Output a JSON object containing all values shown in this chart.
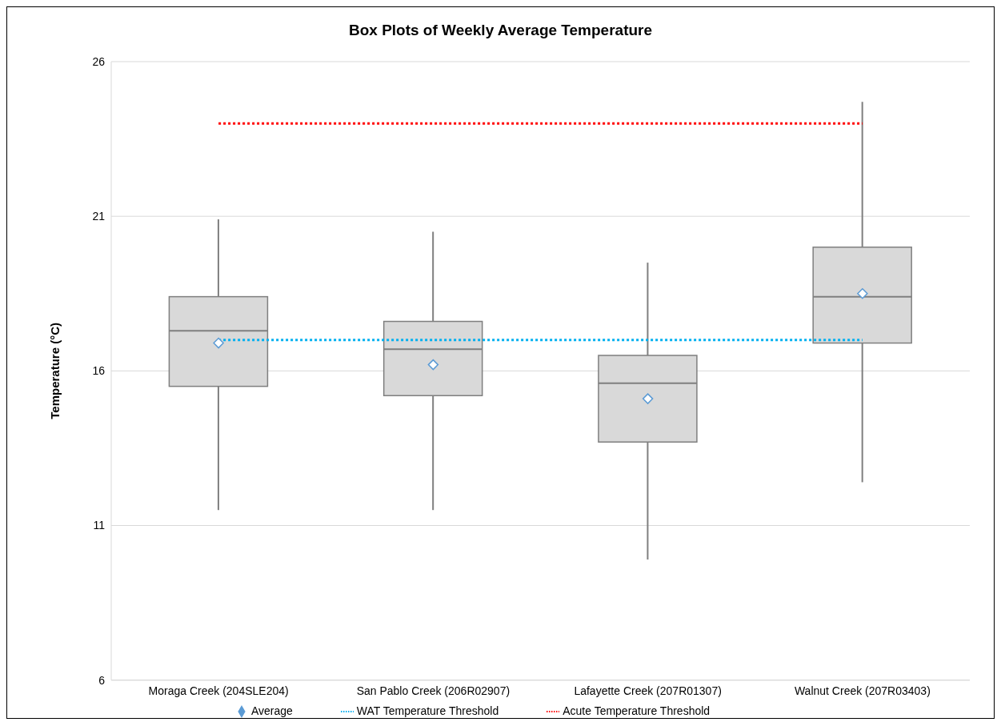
{
  "chart_data": {
    "type": "box",
    "title": "Box Plots of Weekly Average Temperature",
    "ylabel": "Temperature (°C)",
    "categories": [
      "Moraga Creek (204SLE204)",
      "San Pablo Creek (206R02907)",
      "Lafayette Creek (207R01307)",
      "Walnut Creek (207R03403)"
    ],
    "ylim": [
      6,
      26
    ],
    "yticks": [
      6,
      11,
      16,
      21,
      26
    ],
    "grid": "y",
    "legend": "bottom",
    "color": "#d9d9d9",
    "boxes": [
      {
        "low": 11.5,
        "q1": 15.5,
        "median": 17.3,
        "q3": 18.4,
        "high": 20.9
      },
      {
        "low": 11.5,
        "q1": 15.2,
        "median": 16.7,
        "q3": 17.6,
        "high": 20.5
      },
      {
        "low": 9.9,
        "q1": 13.7,
        "median": 15.6,
        "q3": 16.5,
        "high": 19.5
      },
      {
        "low": 12.4,
        "q1": 16.9,
        "median": 18.4,
        "q3": 20.0,
        "high": 24.7
      }
    ],
    "series": [
      {
        "name": "Average",
        "type": "scatter",
        "marker": "diamond",
        "color": "#5b9bd5",
        "x": [
          "Moraga Creek (204SLE204)",
          "San Pablo Creek (206R02907)",
          "Lafayette Creek (207R01307)",
          "Walnut Creek (207R03403)"
        ],
        "values": [
          16.9,
          16.2,
          15.1,
          18.5
        ]
      },
      {
        "name": "WAT Temperature Threshold",
        "type": "line",
        "line_style": "dotted",
        "color": "#00b0f0",
        "values": [
          17,
          17,
          17,
          17
        ]
      },
      {
        "name": "Acute Temperature Threshold",
        "type": "line",
        "line_style": "dotted",
        "color": "#ff0000",
        "values": [
          24,
          24,
          24,
          24
        ]
      }
    ]
  }
}
